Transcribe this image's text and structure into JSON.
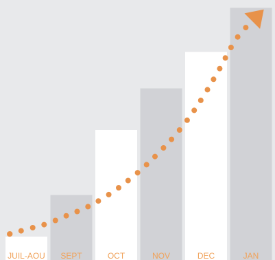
{
  "chart_data": {
    "type": "bar",
    "categories": [
      "JUIL-AOU",
      "SEPT",
      "OCT",
      "NOV",
      "DEC",
      "JAN"
    ],
    "values": [
      9,
      25,
      50,
      66,
      80,
      97
    ],
    "ylim": [
      0,
      100
    ],
    "bar_colors": [
      "#ffffff",
      "#d1d2d6",
      "#ffffff",
      "#d1d2d6",
      "#ffffff",
      "#d1d2d6"
    ],
    "trend": {
      "type": "dotted-curve-with-arrow",
      "y": [
        10,
        12,
        14,
        17,
        20,
        24,
        29,
        35,
        42,
        50,
        60,
        72,
        85,
        93
      ],
      "color": "#e8924a"
    },
    "title": "",
    "xlabel": "",
    "ylabel": "",
    "grid": false,
    "legend": "none",
    "colors": {
      "background": "#e8e9eb",
      "label": "#f0a25a",
      "accent": "#e8924a"
    }
  }
}
